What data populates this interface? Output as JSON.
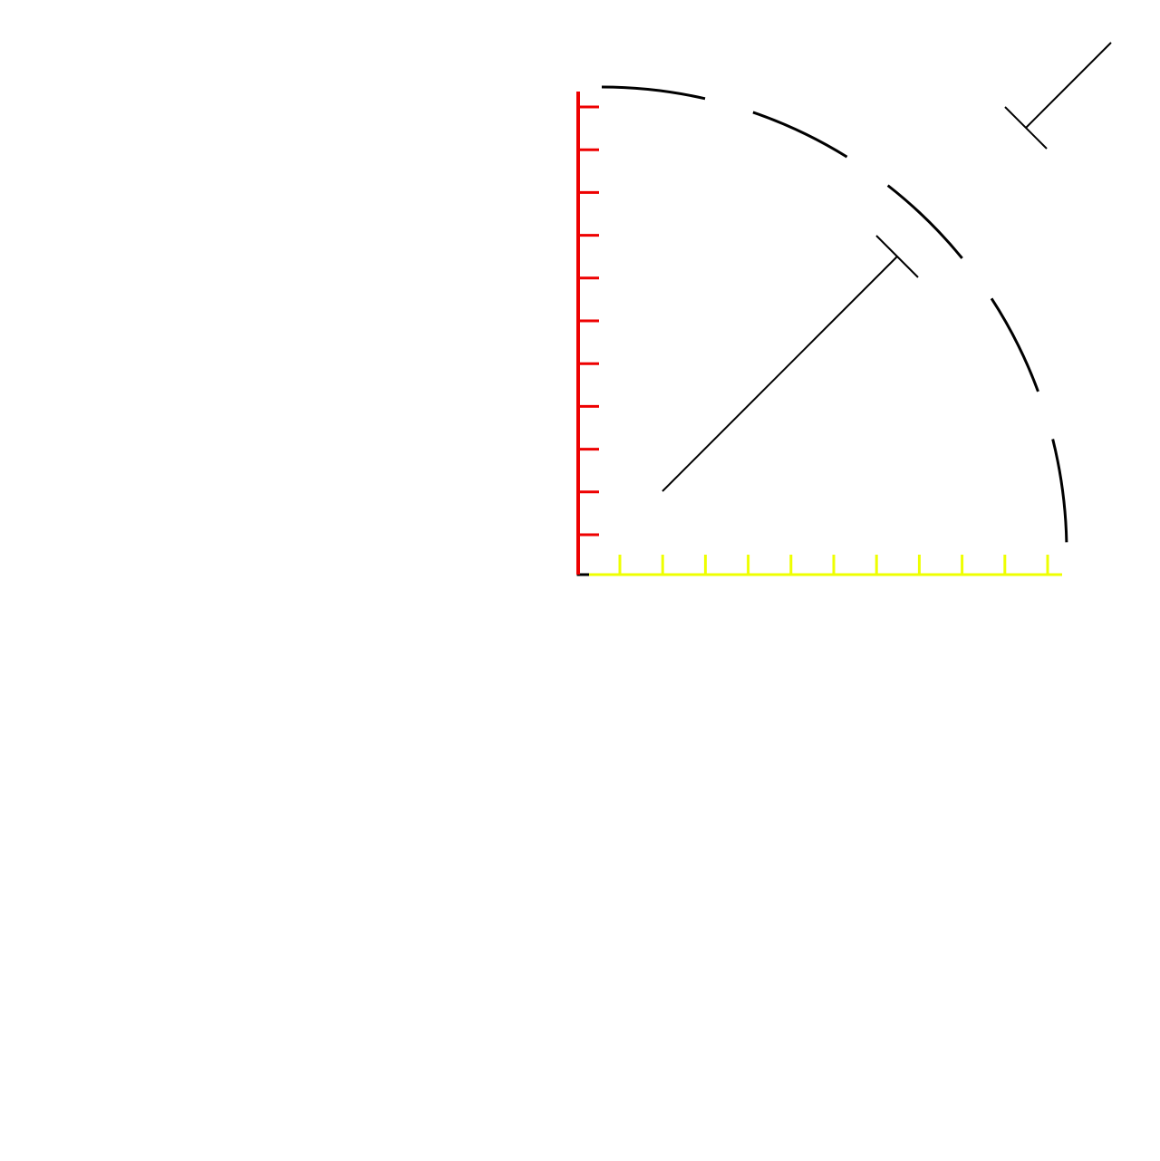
{
  "diagram": {
    "colors": {
      "background": "#ffffff",
      "vertical_axis": "#ee0000",
      "horizontal_axis": "#eeff00",
      "arc": "#000000",
      "guides": "#000000",
      "origin_mark": "#000000"
    },
    "vertical_axis": {
      "tick_count": 11
    },
    "horizontal_axis": {
      "tick_count": 11
    },
    "arc": {
      "style": "dashed",
      "sweep": "quarter circle"
    },
    "guides": {
      "count": 2,
      "end_style": "t-bar"
    }
  }
}
